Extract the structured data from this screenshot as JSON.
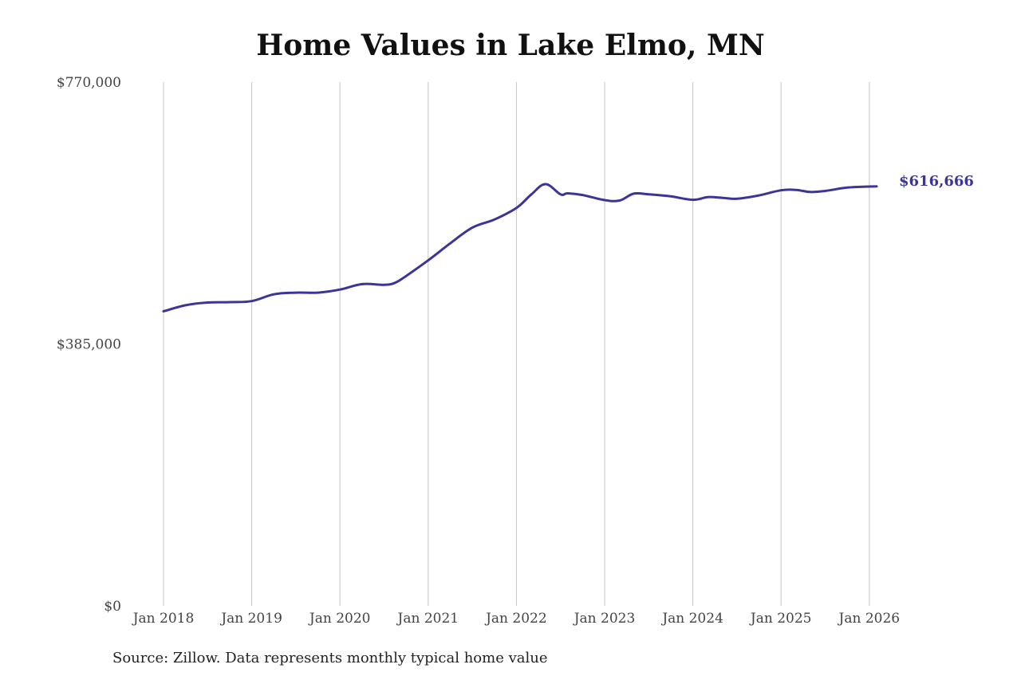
{
  "chart_data": {
    "type": "line",
    "title": "Home Values in Lake Elmo, MN",
    "xlabel": "",
    "ylabel": "",
    "ylim": [
      0,
      770000
    ],
    "y_ticks": [
      "$0",
      "$385,000",
      "$770,000"
    ],
    "y_tick_values": [
      0,
      385000,
      770000
    ],
    "x_ticks": [
      "Jan 2018",
      "Jan 2019",
      "Jan 2020",
      "Jan 2021",
      "Jan 2022",
      "Jan 2023",
      "Jan 2024",
      "Jan 2025",
      "Jan 2026"
    ],
    "x_tick_values": [
      2018,
      2019,
      2020,
      2021,
      2022,
      2023,
      2024,
      2025,
      2026
    ],
    "xlim": [
      2018,
      2026.083
    ],
    "grid": "vertical",
    "line_color": "#3b3599",
    "end_label": "$616,666",
    "series": [
      {
        "points": [
          [
            2018.0,
            433000
          ],
          [
            2018.25,
            442000
          ],
          [
            2018.5,
            446000
          ],
          [
            2018.75,
            446500
          ],
          [
            2019.0,
            448000
          ],
          [
            2019.25,
            458000
          ],
          [
            2019.5,
            460500
          ],
          [
            2019.75,
            460500
          ],
          [
            2020.0,
            465000
          ],
          [
            2020.25,
            473000
          ],
          [
            2020.5,
            472000
          ],
          [
            2020.625,
            475000
          ],
          [
            2020.75,
            485000
          ],
          [
            2021.0,
            508000
          ],
          [
            2021.25,
            533000
          ],
          [
            2021.5,
            556000
          ],
          [
            2021.75,
            568000
          ],
          [
            2022.0,
            585000
          ],
          [
            2022.17,
            605000
          ],
          [
            2022.33,
            620000
          ],
          [
            2022.5,
            605000
          ],
          [
            2022.58,
            606500
          ],
          [
            2022.75,
            604000
          ],
          [
            2023.0,
            596500
          ],
          [
            2023.17,
            596000
          ],
          [
            2023.33,
            606000
          ],
          [
            2023.5,
            605000
          ],
          [
            2023.75,
            602000
          ],
          [
            2024.0,
            597000
          ],
          [
            2024.17,
            601000
          ],
          [
            2024.33,
            600000
          ],
          [
            2024.5,
            598500
          ],
          [
            2024.75,
            603500
          ],
          [
            2025.0,
            611000
          ],
          [
            2025.17,
            611500
          ],
          [
            2025.33,
            608500
          ],
          [
            2025.5,
            610000
          ],
          [
            2025.75,
            615000
          ],
          [
            2026.0,
            616500
          ],
          [
            2026.083,
            616666
          ]
        ]
      }
    ]
  },
  "footer": {
    "source": "Source: Zillow. Data represents monthly typical home value"
  }
}
